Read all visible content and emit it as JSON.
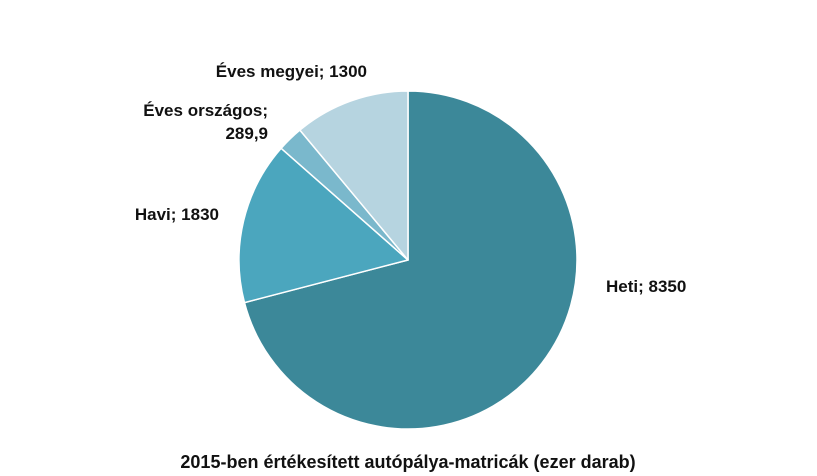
{
  "chart_data": {
    "type": "pie",
    "title": "2015-ben értékesített autópálya-matricák (ezer darab)",
    "slices": [
      {
        "name": "Heti",
        "value": 8350,
        "label_lines": [
          "Heti; 8350"
        ],
        "color": "#3c8899"
      },
      {
        "name": "Havi",
        "value": 1830,
        "label_lines": [
          "Havi; 1830"
        ],
        "color": "#4ba6be"
      },
      {
        "name": "Éves országos",
        "value": 289.9,
        "label_lines": [
          "Éves országos;",
          "289,9"
        ],
        "color": "#7ab8cc"
      },
      {
        "name": "Éves megyei",
        "value": 1300,
        "label_lines": [
          "Éves megyei; 1300"
        ],
        "color": "#b6d4e0"
      }
    ],
    "start_angle": "12 o'clock",
    "direction": "clockwise",
    "legend": "none"
  }
}
